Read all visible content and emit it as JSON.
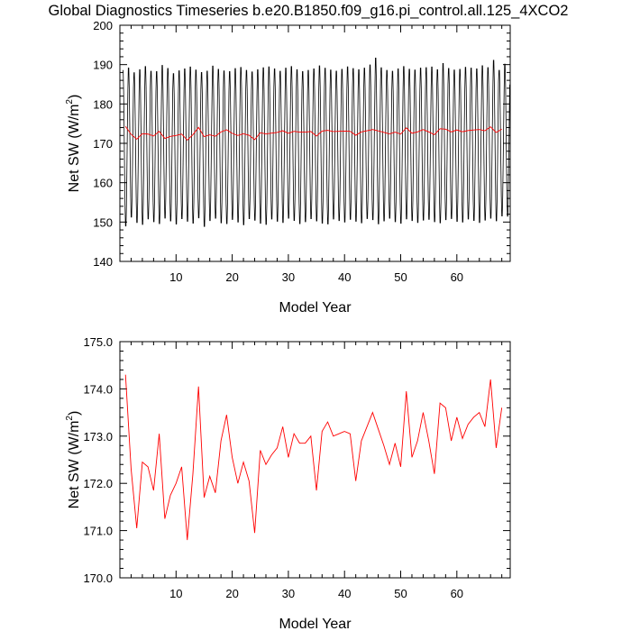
{
  "title": "Global Diagnostics Timeseries b.e20.B1850.f09_g16.pi_control.all.125_4XCO2",
  "colors": {
    "monthly": "#000000",
    "annual": "#ff0000"
  },
  "chart_data": [
    {
      "type": "line",
      "xlabel": "Model Year",
      "ylabel_main": "Net SW (W/m",
      "ylabel_sup": "2",
      "ylabel_tail": ")",
      "xlim": [
        0,
        69.5
      ],
      "ylim": [
        140,
        200
      ],
      "xticks": [
        10,
        20,
        30,
        40,
        50,
        60
      ],
      "yticks": [
        140,
        150,
        160,
        170,
        180,
        190,
        200
      ],
      "ytick_labels": [
        "140",
        "150",
        "160",
        "170",
        "180",
        "190",
        "200"
      ],
      "grid": false,
      "series": [
        {
          "style": "monthly",
          "x_start": 0.5,
          "x_step": 0.0833333,
          "values_peaks": [
            189.2,
            189.8,
            188.6,
            189.4,
            190.2,
            189.0,
            188.9,
            190.5,
            189.7,
            188.4,
            189.1,
            189.6,
            190.1,
            189.3,
            188.7,
            189.0,
            190.3,
            189.5,
            189.1,
            188.9,
            189.7,
            190.0,
            189.2,
            188.8,
            189.4,
            189.9,
            190.1,
            189.6,
            189.0,
            189.8,
            190.2,
            189.4,
            188.9,
            189.2,
            189.6,
            190.4,
            189.8,
            189.3,
            189.0,
            189.5,
            190.1,
            189.7,
            189.4,
            189.8,
            190.6,
            192.4,
            189.9,
            189.2,
            189.0,
            189.6,
            190.2,
            189.5,
            189.3,
            189.8,
            189.9,
            190.1,
            189.4,
            191.0,
            189.7,
            189.3,
            189.5,
            190.0,
            189.8,
            189.6,
            190.4,
            189.9,
            191.8,
            189.2,
            190.8
          ],
          "values_troughs": [
            148.3,
            150.6,
            149.2,
            148.7,
            150.1,
            149.4,
            148.9,
            150.3,
            149.6,
            148.8,
            150.2,
            149.5,
            149.0,
            150.4,
            148.2,
            149.7,
            150.3,
            149.1,
            148.9,
            150.0,
            149.3,
            148.6,
            150.2,
            149.8,
            149.0,
            148.7,
            150.1,
            149.5,
            149.2,
            150.3,
            149.7,
            148.9,
            149.4,
            150.2,
            149.6,
            149.0,
            148.8,
            150.1,
            149.7,
            149.3,
            150.0,
            149.5,
            149.1,
            150.2,
            149.9,
            148.8,
            149.6,
            150.3,
            149.4,
            149.0,
            150.1,
            149.7,
            149.2,
            149.8,
            150.0,
            149.4,
            149.1,
            149.9,
            150.2,
            149.5,
            149.3,
            150.1,
            149.7,
            149.2,
            149.8,
            150.3,
            149.6,
            150.9,
            150.8
          ]
        },
        {
          "style": "annual",
          "x": [
            1,
            2,
            3,
            4,
            5,
            6,
            7,
            8,
            9,
            10,
            11,
            12,
            13,
            14,
            15,
            16,
            17,
            18,
            19,
            20,
            21,
            22,
            23,
            24,
            25,
            26,
            27,
            28,
            29,
            30,
            31,
            32,
            33,
            34,
            35,
            36,
            37,
            38,
            39,
            40,
            41,
            42,
            43,
            44,
            45,
            46,
            47,
            48,
            49,
            50,
            51,
            52,
            53,
            54,
            55,
            56,
            57,
            58,
            59,
            60,
            61,
            62,
            63,
            64,
            65,
            66,
            67,
            68
          ],
          "values": [
            174.3,
            172.3,
            171.05,
            172.45,
            172.35,
            171.85,
            173.05,
            171.25,
            171.75,
            172.0,
            172.35,
            170.8,
            172.2,
            174.05,
            171.7,
            172.15,
            171.8,
            172.9,
            173.45,
            172.55,
            172.0,
            172.45,
            172.05,
            170.95,
            172.7,
            172.4,
            172.6,
            172.75,
            173.2,
            172.55,
            173.05,
            172.85,
            172.85,
            173.0,
            171.85,
            173.1,
            173.3,
            173.0,
            173.05,
            173.1,
            173.05,
            172.05,
            172.9,
            173.2,
            173.5,
            173.15,
            172.8,
            172.4,
            172.85,
            172.35,
            173.95,
            172.55,
            172.9,
            173.5,
            172.9,
            172.2,
            173.7,
            173.6,
            172.9,
            173.4,
            172.95,
            173.25,
            173.4,
            173.5,
            173.2,
            174.2,
            172.75,
            173.6
          ]
        }
      ]
    },
    {
      "type": "line",
      "xlabel": "Model Year",
      "ylabel_main": "Net SW (W/m",
      "ylabel_sup": "2",
      "ylabel_tail": ")",
      "xlim": [
        0,
        69.5
      ],
      "ylim": [
        170,
        175
      ],
      "xticks": [
        10,
        20,
        30,
        40,
        50,
        60
      ],
      "yticks": [
        170,
        171,
        172,
        173,
        174,
        175
      ],
      "ytick_labels": [
        "170.0",
        "171.0",
        "172.0",
        "173.0",
        "174.0",
        "175.0"
      ],
      "grid": false,
      "series": [
        {
          "style": "annual",
          "x": [
            1,
            2,
            3,
            4,
            5,
            6,
            7,
            8,
            9,
            10,
            11,
            12,
            13,
            14,
            15,
            16,
            17,
            18,
            19,
            20,
            21,
            22,
            23,
            24,
            25,
            26,
            27,
            28,
            29,
            30,
            31,
            32,
            33,
            34,
            35,
            36,
            37,
            38,
            39,
            40,
            41,
            42,
            43,
            44,
            45,
            46,
            47,
            48,
            49,
            50,
            51,
            52,
            53,
            54,
            55,
            56,
            57,
            58,
            59,
            60,
            61,
            62,
            63,
            64,
            65,
            66,
            67,
            68
          ],
          "values": [
            174.3,
            172.3,
            171.05,
            172.45,
            172.35,
            171.85,
            173.05,
            171.25,
            171.75,
            172.0,
            172.35,
            170.8,
            172.2,
            174.05,
            171.7,
            172.15,
            171.8,
            172.9,
            173.45,
            172.55,
            172.0,
            172.45,
            172.05,
            170.95,
            172.7,
            172.4,
            172.6,
            172.75,
            173.2,
            172.55,
            173.05,
            172.85,
            172.85,
            173.0,
            171.85,
            173.1,
            173.3,
            173.0,
            173.05,
            173.1,
            173.05,
            172.05,
            172.9,
            173.2,
            173.5,
            173.15,
            172.8,
            172.4,
            172.85,
            172.35,
            173.95,
            172.55,
            172.9,
            173.5,
            172.9,
            172.2,
            173.7,
            173.6,
            172.9,
            173.4,
            172.95,
            173.25,
            173.4,
            173.5,
            173.2,
            174.2,
            172.75,
            173.6
          ]
        }
      ]
    }
  ]
}
